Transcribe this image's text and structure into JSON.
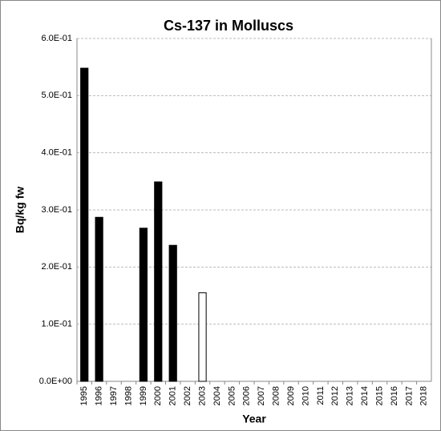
{
  "chart_data": {
    "type": "bar",
    "title": "Cs-137 in Molluscs",
    "x_label": "Year",
    "y_label": "Bq/kg fw",
    "categories": [
      "1995",
      "1996",
      "1997",
      "1998",
      "1999",
      "2000",
      "2001",
      "2002",
      "2003",
      "2004",
      "2005",
      "2006",
      "2007",
      "2008",
      "2009",
      "2010",
      "2011",
      "2012",
      "2013",
      "2014",
      "2015",
      "2016",
      "2017",
      "2018"
    ],
    "values": [
      0.548,
      0.287,
      null,
      null,
      0.268,
      0.349,
      0.238,
      null,
      0.155,
      null,
      null,
      null,
      null,
      null,
      null,
      null,
      null,
      null,
      null,
      null,
      null,
      null,
      null,
      null
    ],
    "colors": [
      "#000000",
      "#000000",
      null,
      null,
      "#000000",
      "#000000",
      "#000000",
      null,
      "#ffffff",
      null,
      null,
      null,
      null,
      null,
      null,
      null,
      null,
      null,
      null,
      null,
      null,
      null,
      null,
      null
    ],
    "ylim": [
      0,
      0.6
    ],
    "yticks": [
      {
        "value": 0,
        "label": "0.0E+00"
      },
      {
        "value": 0.1,
        "label": "1.0E-01"
      },
      {
        "value": 0.2,
        "label": "2.0E-01"
      },
      {
        "value": 0.3,
        "label": "3.0E-01"
      },
      {
        "value": 0.4,
        "label": "4.0E-01"
      },
      {
        "value": 0.5,
        "label": "5.0E-01"
      },
      {
        "value": 0.6,
        "label": "6.0E-01"
      }
    ],
    "grid": true
  }
}
